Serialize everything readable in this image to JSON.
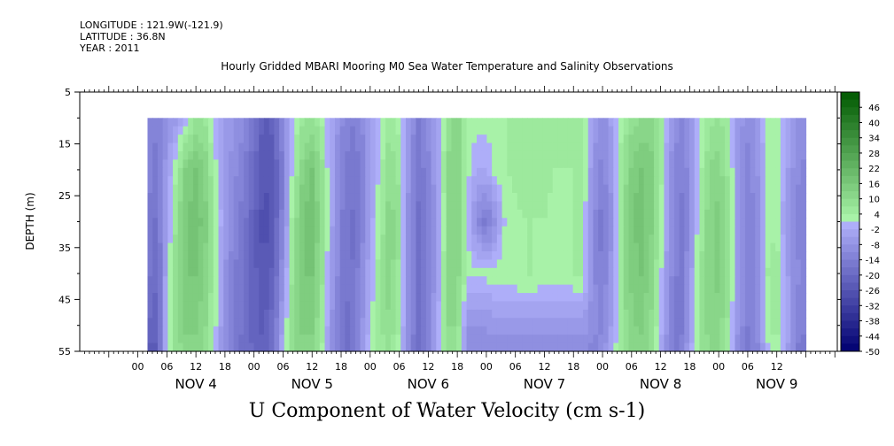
{
  "header": {
    "longitude": "LONGITUDE : 121.9W(-121.9)",
    "latitude": "LATITUDE : 36.8N",
    "year": "YEAR : 2011"
  },
  "chart_data": {
    "type": "heatmap",
    "title": "Hourly Gridded MBARI Mooring M0 Sea Water Temperature and Salinity Observations",
    "xlabel": "U Component of Water Velocity (cm s-1)",
    "ylabel": "DEPTH (m)",
    "y_ticks": [
      "5",
      "15",
      "25",
      "35",
      "45",
      "55"
    ],
    "ylim": [
      5,
      55
    ],
    "y_inverted": true,
    "x_hour_ticks": [
      "00",
      "06",
      "12",
      "18",
      "00",
      "06",
      "12",
      "18",
      "00",
      "06",
      "12",
      "18",
      "00",
      "06",
      "12",
      "18",
      "00",
      "06",
      "12",
      "18",
      "00",
      "06",
      "12"
    ],
    "x_day_labels": [
      "NOV 4",
      "NOV 5",
      "NOV 6",
      "NOV 7",
      "NOV 8",
      "NOV 9"
    ],
    "colorbar": {
      "labels": [
        "46",
        "40",
        "34",
        "28",
        "22",
        "16",
        "10",
        "4",
        "-2",
        "-8",
        "-14",
        "-20",
        "-26",
        "-32",
        "-38",
        "-44",
        "-50"
      ],
      "range": [
        -50,
        52
      ],
      "step": 3
    },
    "data_depth_range": [
      10,
      55
    ],
    "field": {
      "depths": [
        10,
        20,
        30,
        40,
        50,
        55
      ],
      "times_hours_from_nov4_00": [
        2,
        4,
        6,
        8,
        10,
        12,
        14,
        16,
        18,
        20,
        22,
        24,
        26,
        28,
        30,
        32,
        34,
        36,
        38,
        40,
        42,
        44,
        46,
        48,
        50,
        52,
        54,
        56,
        58,
        60,
        62,
        64,
        66,
        68,
        70,
        72,
        74,
        76,
        78,
        80,
        82,
        84,
        86,
        88,
        90,
        92,
        94,
        96,
        98,
        100,
        102,
        104,
        106,
        108,
        110,
        112,
        114,
        116,
        118,
        120,
        122,
        124,
        126,
        128,
        130,
        132,
        134,
        136,
        138
      ],
      "values_rows_by_depth": [
        [
          -10,
          -14,
          -8,
          -6,
          0,
          8,
          6,
          -2,
          -6,
          -8,
          -10,
          -16,
          -24,
          -22,
          -10,
          0,
          6,
          8,
          4,
          -4,
          -10,
          -14,
          -12,
          -6,
          0,
          6,
          2,
          -8,
          -14,
          -10,
          -4,
          8,
          14,
          4,
          3,
          2,
          3,
          4,
          5,
          6,
          6,
          5,
          4,
          4,
          5,
          6,
          -6,
          -10,
          -4,
          4,
          8,
          10,
          12,
          6,
          -6,
          -12,
          -8,
          0,
          6,
          8,
          4,
          -6,
          -10,
          -6,
          2,
          4,
          -2,
          -8,
          -10
        ],
        [
          -12,
          -16,
          -6,
          4,
          14,
          16,
          12,
          2,
          -6,
          -10,
          -14,
          -20,
          -26,
          -24,
          -14,
          2,
          12,
          16,
          8,
          -4,
          -12,
          -16,
          -14,
          -6,
          2,
          10,
          6,
          -8,
          -16,
          -12,
          -4,
          10,
          14,
          2,
          -2,
          -2,
          3,
          4,
          5,
          6,
          6,
          5,
          4,
          4,
          4,
          5,
          -8,
          -12,
          -6,
          6,
          14,
          16,
          14,
          6,
          -8,
          -14,
          -10,
          2,
          10,
          12,
          6,
          -6,
          -12,
          -8,
          2,
          4,
          -4,
          -10,
          -12
        ],
        [
          -14,
          -18,
          -4,
          8,
          16,
          18,
          14,
          4,
          -6,
          -12,
          -16,
          -22,
          -28,
          -24,
          -12,
          6,
          16,
          18,
          10,
          -4,
          -14,
          -18,
          -14,
          -4,
          4,
          12,
          8,
          -10,
          -18,
          -14,
          -6,
          10,
          14,
          2,
          -10,
          -16,
          -8,
          2,
          3,
          4,
          4,
          4,
          3,
          3,
          4,
          4,
          -10,
          -16,
          -8,
          8,
          16,
          18,
          14,
          4,
          -10,
          -16,
          -10,
          4,
          12,
          14,
          8,
          -6,
          -14,
          -10,
          2,
          4,
          -6,
          -12,
          -14
        ],
        [
          -16,
          -20,
          -2,
          10,
          16,
          16,
          12,
          4,
          -8,
          -14,
          -18,
          -22,
          -26,
          -22,
          -8,
          8,
          16,
          16,
          8,
          -6,
          -14,
          -18,
          -12,
          -2,
          6,
          12,
          6,
          -10,
          -18,
          -14,
          -4,
          10,
          12,
          2,
          2,
          2,
          3,
          3,
          4,
          4,
          4,
          3,
          3,
          3,
          4,
          4,
          -10,
          -14,
          -6,
          8,
          14,
          16,
          12,
          2,
          -10,
          -16,
          -8,
          6,
          12,
          14,
          8,
          -6,
          -14,
          -10,
          4,
          6,
          -4,
          -10,
          -12
        ],
        [
          -20,
          -22,
          0,
          10,
          14,
          14,
          10,
          2,
          -10,
          -14,
          -18,
          -22,
          -24,
          -18,
          -4,
          10,
          14,
          14,
          6,
          -8,
          -16,
          -18,
          -10,
          0,
          6,
          10,
          4,
          -10,
          -18,
          -14,
          -2,
          10,
          10,
          -8,
          -8,
          -8,
          -6,
          -6,
          -6,
          -6,
          -6,
          -6,
          -6,
          -6,
          -6,
          -6,
          -10,
          -12,
          -4,
          8,
          12,
          14,
          10,
          0,
          -12,
          -16,
          -6,
          6,
          12,
          12,
          6,
          -8,
          -14,
          -10,
          2,
          6,
          -2,
          -12,
          -14
        ],
        [
          -24,
          -24,
          0,
          8,
          12,
          12,
          8,
          0,
          -10,
          -16,
          -18,
          -20,
          -22,
          -16,
          -2,
          10,
          12,
          12,
          4,
          -10,
          -16,
          -18,
          -8,
          2,
          6,
          8,
          2,
          -12,
          -18,
          -12,
          0,
          8,
          8,
          -10,
          -10,
          -10,
          -10,
          -10,
          -10,
          -10,
          -10,
          -10,
          -10,
          -10,
          -10,
          -10,
          -12,
          -10,
          -2,
          6,
          10,
          12,
          8,
          -2,
          -14,
          -16,
          -4,
          6,
          10,
          10,
          4,
          -10,
          -16,
          -12,
          0,
          4,
          -4,
          -14,
          -16
        ]
      ]
    }
  }
}
